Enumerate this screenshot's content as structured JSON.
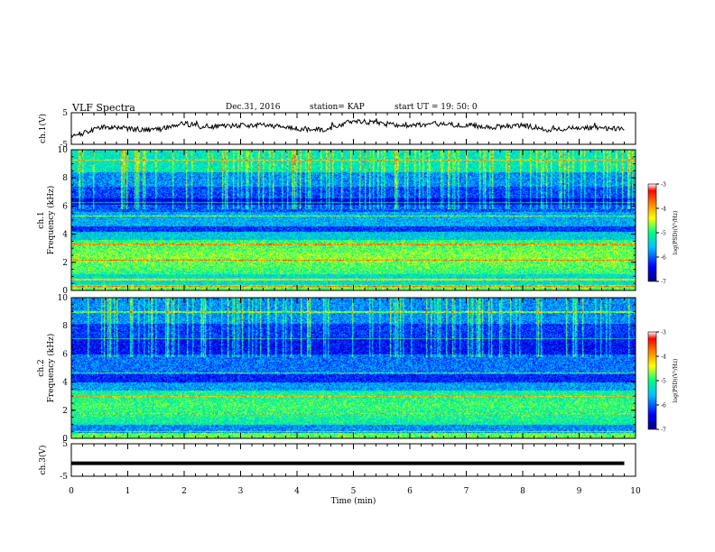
{
  "header": {
    "title": "VLF Spectra",
    "date": "Dec.31, 2016",
    "station": "station= KAP",
    "start": "start  UT =   19: 50: 0"
  },
  "colorbar": {
    "label": "log(PSD)(V²/Hz)",
    "ticks": [
      "-3",
      "-4",
      "-5",
      "-6",
      "-7"
    ],
    "range": [
      -7,
      -3
    ],
    "colors": [
      "#000080",
      "#0000ff",
      "#00bfff",
      "#00ff80",
      "#ffff00",
      "#ff8000",
      "#ff0000",
      "#ffffff"
    ]
  },
  "chart_data": [
    {
      "type": "line",
      "panel": "ch1-waveform",
      "ylabel": "ch.1(V)",
      "ylim": [
        -5,
        5
      ],
      "yticks": [
        "5",
        "-5"
      ],
      "xlim": [
        0,
        10
      ],
      "x": [
        0,
        0.3,
        0.6,
        1.0,
        1.5,
        2.0,
        2.5,
        3.0,
        3.5,
        4.0,
        4.5,
        5.0,
        5.5,
        6.0,
        6.5,
        7.0,
        7.5,
        8.0,
        8.5,
        9.0,
        9.5,
        9.8
      ],
      "y": [
        -2.5,
        -1.0,
        0.5,
        0.0,
        -0.5,
        1.5,
        0.5,
        1.0,
        1.0,
        0.0,
        -0.5,
        2.5,
        1.5,
        1.0,
        1.5,
        1.0,
        0.5,
        1.0,
        -0.5,
        0.5,
        0.0,
        0.0
      ],
      "color": "#000000"
    },
    {
      "type": "heatmap",
      "panel": "ch1-spectrogram",
      "ylabel": "ch.1\nFrequency (kHz)",
      "ylim": [
        0,
        10
      ],
      "yticks": [
        "0",
        "2",
        "4",
        "6",
        "8",
        "10"
      ],
      "xlim": [
        0,
        10
      ]
    },
    {
      "type": "heatmap",
      "panel": "ch2-spectrogram",
      "ylabel": "ch.2\nFrequency (kHz)",
      "ylim": [
        0,
        10
      ],
      "yticks": [
        "0",
        "2",
        "4",
        "6",
        "8",
        "10"
      ],
      "xlim": [
        0,
        10
      ]
    },
    {
      "type": "line",
      "panel": "ch3-waveform",
      "ylabel": "ch.3(V)",
      "ylim": [
        -5,
        5
      ],
      "yticks": [
        "5",
        "-5"
      ],
      "xlim": [
        0,
        10
      ],
      "x": [
        0,
        9.8
      ],
      "y": [
        -1.0,
        -1.0
      ],
      "color": "#000000"
    }
  ],
  "xaxis": {
    "label": "Time  (min)",
    "ticks": [
      "0",
      "1",
      "2",
      "3",
      "4",
      "5",
      "6",
      "7",
      "8",
      "9",
      "10"
    ]
  }
}
